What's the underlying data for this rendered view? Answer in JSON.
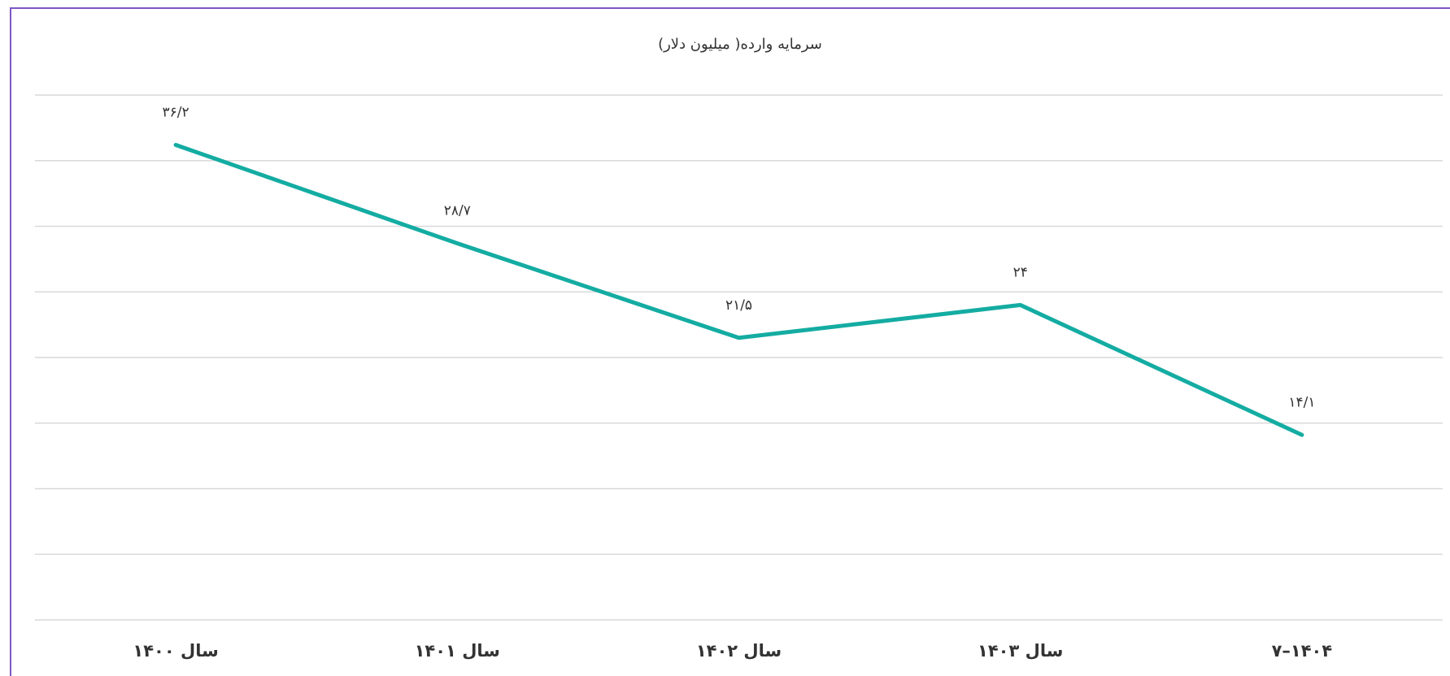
{
  "chart_data": {
    "type": "line",
    "title": "سرمایه وارده( میلیون دلار)",
    "categories": [
      "سال ۱۴۰۰",
      "سال ۱۴۰۱",
      "سال ۱۴۰۲",
      "سال ۱۴۰۳",
      "۱۴۰۴–۷"
    ],
    "values": [
      36.2,
      28.7,
      21.5,
      24,
      14.1
    ],
    "value_labels": [
      "۳۶/۲",
      "۲۸/۷",
      "۲۱/۵",
      "۲۴",
      "۱۴/۱"
    ],
    "color": "#14aca2",
    "ylim": [
      0,
      40
    ],
    "yticks": [
      0,
      5,
      10,
      15,
      20,
      25,
      30,
      35,
      40
    ],
    "grid": true
  }
}
